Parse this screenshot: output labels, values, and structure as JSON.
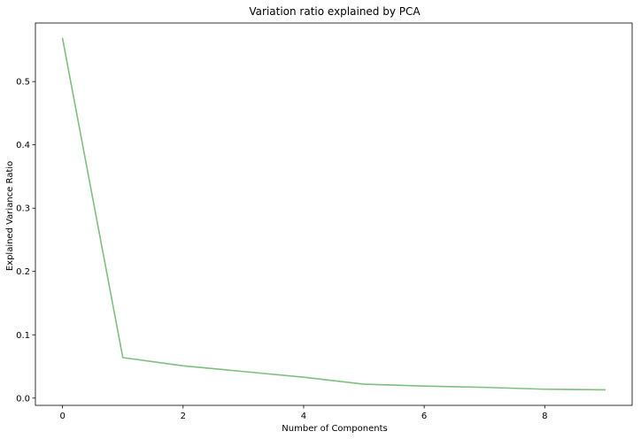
{
  "chart_data": {
    "type": "line",
    "title": "Variation ratio explained by PCA",
    "xlabel": "Number of Components",
    "ylabel": "Explained Variance Ratio",
    "xlim": [
      -0.45,
      9.45
    ],
    "ylim": [
      -0.0115,
      0.5925
    ],
    "xticks": [
      0,
      2,
      4,
      6,
      8
    ],
    "yticks": [
      0.0,
      0.1,
      0.2,
      0.3,
      0.4,
      0.5
    ],
    "xtick_labels": [
      "0",
      "2",
      "4",
      "6",
      "8"
    ],
    "ytick_labels": [
      "0.0",
      "0.1",
      "0.2",
      "0.3",
      "0.4",
      "0.5"
    ],
    "grid": false,
    "x": [
      0,
      1,
      2,
      3,
      4,
      5,
      6,
      7,
      8,
      9
    ],
    "series": [
      {
        "color": "#7fbf7f",
        "values": [
          0.568,
          0.064,
          0.051,
          0.042,
          0.033,
          0.022,
          0.019,
          0.017,
          0.014,
          0.013
        ]
      }
    ]
  }
}
